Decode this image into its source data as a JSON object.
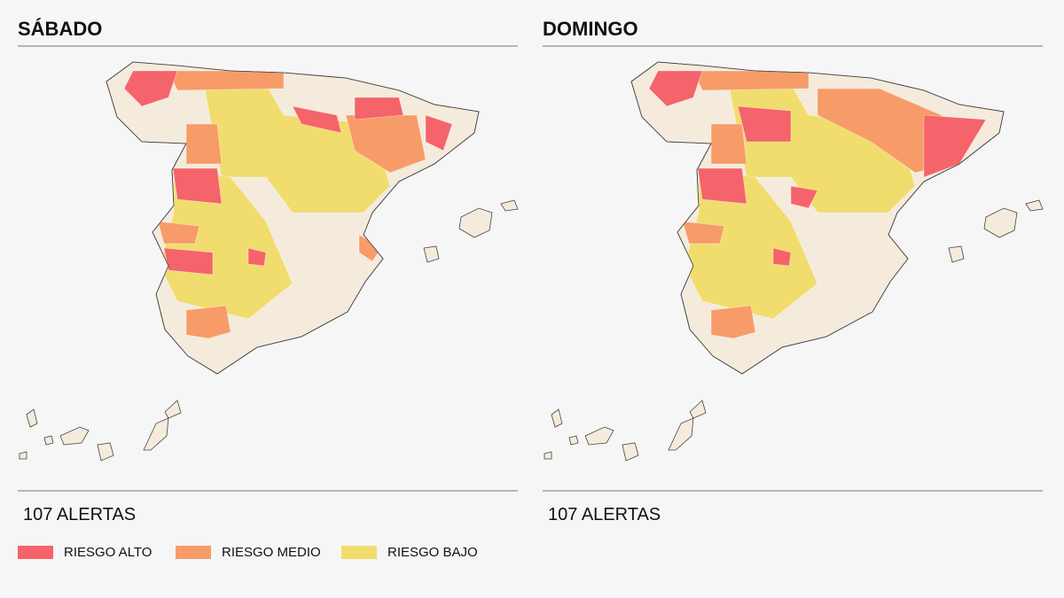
{
  "panels": [
    {
      "title": "SÁBADO",
      "alerts": "107 ALERTAS"
    },
    {
      "title": "DOMINGO",
      "alerts": "107 ALERTAS"
    }
  ],
  "legend": [
    {
      "label": "RIESGO ALTO",
      "color": "#f5636b"
    },
    {
      "label": "RIESGO MEDIO",
      "color": "#f79c68"
    },
    {
      "label": "RIESGO BAJO",
      "color": "#f1dc6e"
    }
  ]
}
